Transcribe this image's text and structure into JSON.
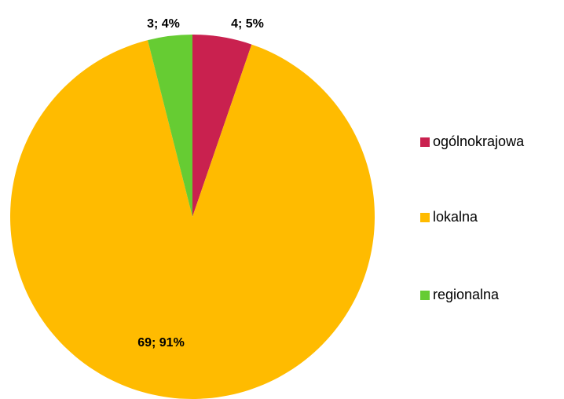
{
  "chart_data": {
    "type": "pie",
    "categories": [
      "ogólnokrajowa",
      "lokalna",
      "regionalna"
    ],
    "values": [
      4,
      69,
      3
    ],
    "value_labels": [
      "4; 5%",
      "69; 91%",
      "3; 4%"
    ],
    "colors": [
      "#c9214f",
      "#ffbb00",
      "#66cc33"
    ],
    "legend": "right"
  }
}
